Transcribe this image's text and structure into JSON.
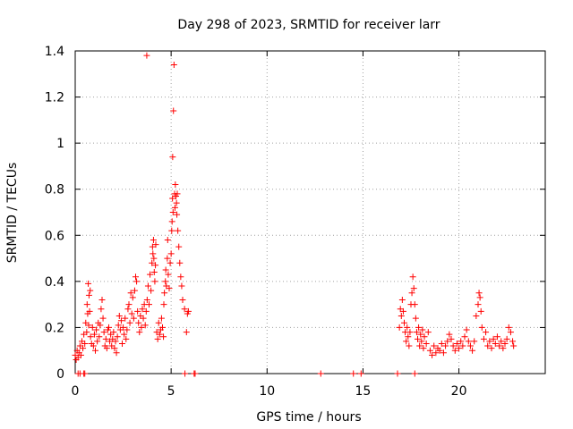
{
  "chart_data": {
    "type": "scatter",
    "title": "Day 298 of 2023, SRMTID for receiver larr",
    "xlabel": "GPS time / hours",
    "ylabel": "SRMTID / TECUs",
    "xlim": [
      0,
      24.5
    ],
    "ylim": [
      0,
      1.4
    ],
    "xticks": [
      0,
      5,
      10,
      15,
      20
    ],
    "xtick_labels": [
      "0",
      "5",
      "10",
      "15",
      "20"
    ],
    "yticks": [
      0,
      0.2,
      0.4,
      0.6,
      0.8,
      1.0,
      1.2,
      1.4
    ],
    "ytick_labels": [
      "0",
      "0.2",
      "0.4",
      "0.6",
      "0.8",
      "1",
      "1.2",
      "1.4"
    ],
    "grid": true,
    "marker": "plus",
    "color": "#ff0000",
    "series": [
      {
        "name": "SRMTID",
        "points": [
          [
            0.0,
            0.08
          ],
          [
            0.05,
            0.06
          ],
          [
            0.1,
            0.1
          ],
          [
            0.15,
            0.07
          ],
          [
            0.2,
            0.09
          ],
          [
            0.25,
            0.12
          ],
          [
            0.3,
            0.08
          ],
          [
            0.35,
            0.14
          ],
          [
            0.4,
            0.11
          ],
          [
            0.45,
            0.17
          ],
          [
            0.5,
            0.13
          ],
          [
            0.55,
            0.22
          ],
          [
            0.6,
            0.18
          ],
          [
            0.62,
            0.3
          ],
          [
            0.65,
            0.26
          ],
          [
            0.68,
            0.39
          ],
          [
            0.7,
            0.21
          ],
          [
            0.72,
            0.34
          ],
          [
            0.75,
            0.27
          ],
          [
            0.78,
            0.36
          ],
          [
            0.8,
            0.16
          ],
          [
            0.85,
            0.13
          ],
          [
            0.9,
            0.2
          ],
          [
            0.95,
            0.12
          ],
          [
            1.0,
            0.17
          ],
          [
            1.05,
            0.1
          ],
          [
            1.1,
            0.19
          ],
          [
            1.15,
            0.14
          ],
          [
            1.2,
            0.22
          ],
          [
            1.25,
            0.16
          ],
          [
            1.3,
            0.21
          ],
          [
            1.35,
            0.28
          ],
          [
            1.4,
            0.32
          ],
          [
            1.45,
            0.24
          ],
          [
            1.5,
            0.18
          ],
          [
            1.55,
            0.12
          ],
          [
            1.6,
            0.15
          ],
          [
            1.65,
            0.11
          ],
          [
            1.7,
            0.19
          ],
          [
            1.75,
            0.2
          ],
          [
            1.8,
            0.14
          ],
          [
            1.85,
            0.17
          ],
          [
            1.9,
            0.12
          ],
          [
            1.95,
            0.15
          ],
          [
            2.0,
            0.18
          ],
          [
            2.05,
            0.11
          ],
          [
            2.1,
            0.14
          ],
          [
            2.15,
            0.09
          ],
          [
            2.2,
            0.16
          ],
          [
            2.25,
            0.21
          ],
          [
            2.3,
            0.25
          ],
          [
            2.35,
            0.19
          ],
          [
            2.4,
            0.23
          ],
          [
            2.45,
            0.13
          ],
          [
            2.5,
            0.2
          ],
          [
            2.55,
            0.17
          ],
          [
            2.6,
            0.24
          ],
          [
            2.65,
            0.15
          ],
          [
            2.7,
            0.19
          ],
          [
            2.75,
            0.28
          ],
          [
            2.8,
            0.3
          ],
          [
            2.85,
            0.22
          ],
          [
            2.9,
            0.35
          ],
          [
            2.95,
            0.26
          ],
          [
            3.0,
            0.33
          ],
          [
            3.05,
            0.24
          ],
          [
            3.1,
            0.36
          ],
          [
            3.15,
            0.42
          ],
          [
            3.2,
            0.4
          ],
          [
            3.25,
            0.27
          ],
          [
            3.3,
            0.22
          ],
          [
            3.35,
            0.18
          ],
          [
            3.4,
            0.25
          ],
          [
            3.45,
            0.2
          ],
          [
            3.5,
            0.28
          ],
          [
            3.55,
            0.24
          ],
          [
            3.6,
            0.3
          ],
          [
            3.65,
            0.21
          ],
          [
            3.7,
            0.27
          ],
          [
            3.73,
            1.38
          ],
          [
            3.75,
            0.32
          ],
          [
            3.8,
            0.38
          ],
          [
            3.85,
            0.3
          ],
          [
            3.9,
            0.43
          ],
          [
            3.95,
            0.36
          ],
          [
            4.0,
            0.48
          ],
          [
            4.03,
            0.55
          ],
          [
            4.05,
            0.52
          ],
          [
            4.08,
            0.58
          ],
          [
            4.1,
            0.5
          ],
          [
            4.12,
            0.44
          ],
          [
            4.15,
            0.4
          ],
          [
            4.18,
            0.47
          ],
          [
            4.2,
            0.56
          ],
          [
            4.25,
            0.18
          ],
          [
            4.3,
            0.15
          ],
          [
            4.35,
            0.22
          ],
          [
            4.4,
            0.17
          ],
          [
            4.45,
            0.19
          ],
          [
            4.5,
            0.24
          ],
          [
            4.55,
            0.2
          ],
          [
            4.6,
            0.16
          ],
          [
            4.62,
            0.3
          ],
          [
            4.65,
            0.35
          ],
          [
            4.7,
            0.4
          ],
          [
            4.72,
            0.45
          ],
          [
            4.75,
            0.38
          ],
          [
            4.8,
            0.5
          ],
          [
            4.82,
            0.58
          ],
          [
            4.85,
            0.43
          ],
          [
            4.9,
            0.37
          ],
          [
            4.95,
            0.48
          ],
          [
            5.0,
            0.52
          ],
          [
            5.03,
            0.62
          ],
          [
            5.05,
            0.66
          ],
          [
            5.07,
            0.76
          ],
          [
            5.08,
            0.94
          ],
          [
            5.1,
            0.7
          ],
          [
            5.12,
            1.14
          ],
          [
            5.15,
            1.34
          ],
          [
            5.18,
            0.78
          ],
          [
            5.2,
            0.72
          ],
          [
            5.22,
            0.82
          ],
          [
            5.25,
            0.77
          ],
          [
            5.28,
            0.74
          ],
          [
            5.3,
            0.69
          ],
          [
            5.32,
            0.78
          ],
          [
            5.35,
            0.62
          ],
          [
            5.4,
            0.55
          ],
          [
            5.45,
            0.48
          ],
          [
            5.5,
            0.42
          ],
          [
            5.55,
            0.38
          ],
          [
            5.6,
            0.32
          ],
          [
            5.7,
            0.28
          ],
          [
            5.72,
            0.0
          ],
          [
            5.8,
            0.18
          ],
          [
            5.85,
            0.26
          ],
          [
            5.9,
            0.27
          ],
          [
            6.2,
            0.0
          ],
          [
            6.25,
            0.0
          ],
          [
            0.15,
            0.0
          ],
          [
            0.25,
            0.0
          ],
          [
            0.45,
            0.0
          ],
          [
            0.5,
            0.0
          ],
          [
            12.8,
            0.0
          ],
          [
            14.5,
            0.0
          ],
          [
            14.9,
            0.0
          ],
          [
            16.8,
            0.0
          ],
          [
            17.7,
            0.0
          ],
          [
            16.9,
            0.2
          ],
          [
            16.95,
            0.28
          ],
          [
            17.0,
            0.25
          ],
          [
            17.05,
            0.32
          ],
          [
            17.1,
            0.27
          ],
          [
            17.15,
            0.22
          ],
          [
            17.2,
            0.18
          ],
          [
            17.25,
            0.14
          ],
          [
            17.3,
            0.2
          ],
          [
            17.35,
            0.16
          ],
          [
            17.4,
            0.12
          ],
          [
            17.45,
            0.18
          ],
          [
            17.5,
            0.3
          ],
          [
            17.55,
            0.35
          ],
          [
            17.6,
            0.42
          ],
          [
            17.65,
            0.37
          ],
          [
            17.7,
            0.3
          ],
          [
            17.75,
            0.24
          ],
          [
            17.8,
            0.18
          ],
          [
            17.85,
            0.15
          ],
          [
            17.9,
            0.2
          ],
          [
            17.95,
            0.12
          ],
          [
            18.0,
            0.17
          ],
          [
            18.05,
            0.14
          ],
          [
            18.1,
            0.19
          ],
          [
            18.15,
            0.11
          ],
          [
            18.2,
            0.16
          ],
          [
            18.3,
            0.13
          ],
          [
            18.4,
            0.18
          ],
          [
            18.5,
            0.1
          ],
          [
            18.6,
            0.08
          ],
          [
            18.7,
            0.12
          ],
          [
            18.8,
            0.09
          ],
          [
            18.9,
            0.11
          ],
          [
            19.0,
            0.1
          ],
          [
            19.1,
            0.13
          ],
          [
            19.2,
            0.09
          ],
          [
            19.3,
            0.12
          ],
          [
            19.4,
            0.14
          ],
          [
            19.5,
            0.17
          ],
          [
            19.6,
            0.15
          ],
          [
            19.7,
            0.12
          ],
          [
            19.8,
            0.1
          ],
          [
            19.9,
            0.13
          ],
          [
            20.0,
            0.11
          ],
          [
            20.1,
            0.14
          ],
          [
            20.2,
            0.12
          ],
          [
            20.3,
            0.16
          ],
          [
            20.4,
            0.19
          ],
          [
            20.5,
            0.14
          ],
          [
            20.6,
            0.12
          ],
          [
            20.7,
            0.1
          ],
          [
            20.8,
            0.14
          ],
          [
            20.9,
            0.25
          ],
          [
            21.0,
            0.3
          ],
          [
            21.05,
            0.35
          ],
          [
            21.1,
            0.33
          ],
          [
            21.15,
            0.27
          ],
          [
            21.2,
            0.2
          ],
          [
            21.3,
            0.15
          ],
          [
            21.4,
            0.18
          ],
          [
            21.5,
            0.12
          ],
          [
            21.6,
            0.14
          ],
          [
            21.7,
            0.11
          ],
          [
            21.8,
            0.15
          ],
          [
            21.9,
            0.13
          ],
          [
            22.0,
            0.16
          ],
          [
            22.1,
            0.12
          ],
          [
            22.2,
            0.14
          ],
          [
            22.3,
            0.11
          ],
          [
            22.4,
            0.13
          ],
          [
            22.5,
            0.15
          ],
          [
            22.6,
            0.2
          ],
          [
            22.7,
            0.18
          ],
          [
            22.8,
            0.14
          ],
          [
            22.85,
            0.12
          ]
        ]
      }
    ]
  }
}
